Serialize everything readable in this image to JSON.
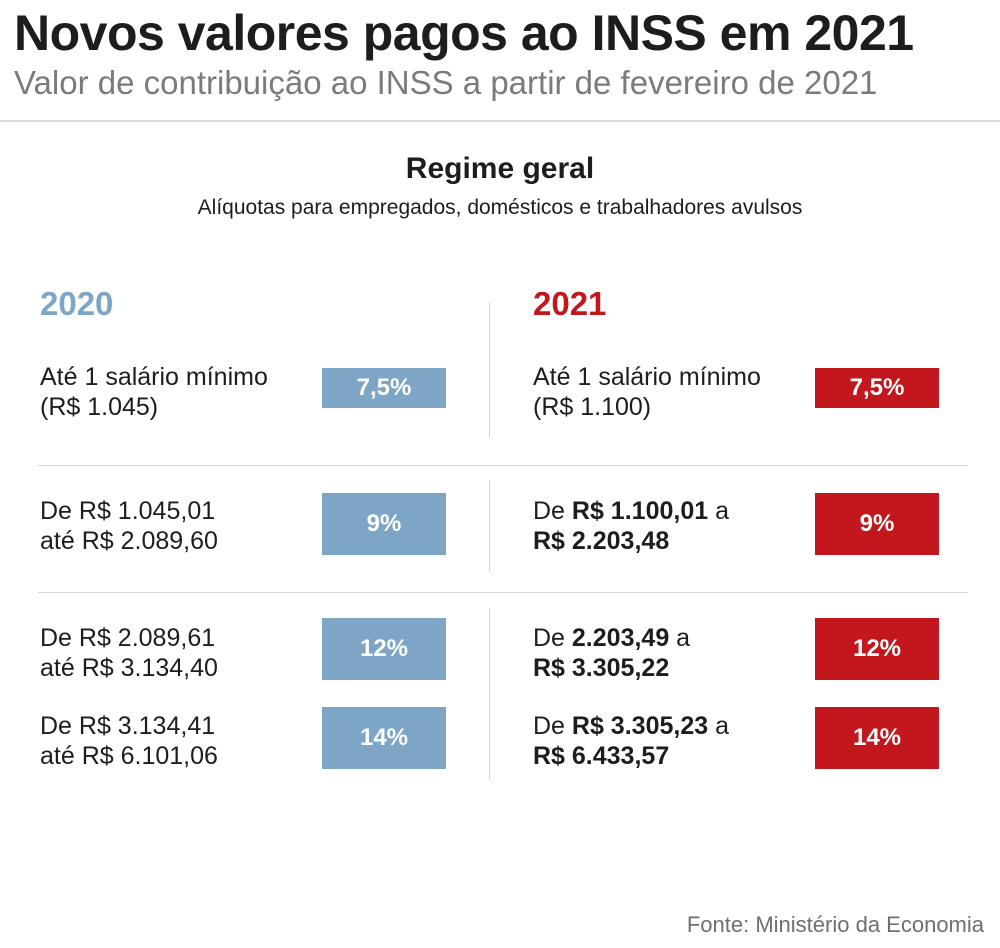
{
  "header": {
    "title": "Novos valores pagos ao INSS em 2021",
    "subtitle": "Valor de contribuição ao INSS a partir de fevereiro de 2021"
  },
  "section": {
    "title": "Regime geral",
    "subtitle": "Alíquotas para empregados, domésticos e trabalhadores avulsos"
  },
  "columns": {
    "left_year": "2020",
    "right_year": "2021"
  },
  "rows": [
    {
      "left": {
        "line1": "Até 1 salário mínimo",
        "line2": "(R$ 1.045)",
        "rate": "7,5%"
      },
      "right": {
        "line1": "Até 1 salário mínimo",
        "line2": "(R$ 1.100)",
        "rate": "7,5%"
      }
    },
    {
      "left": {
        "line1": "De R$ 1.045,01",
        "line2": "até R$ 2.089,60",
        "rate": "9%"
      },
      "right": {
        "l1a": "De ",
        "l1b": "R$ 1.100,01",
        "l1c": " a",
        "line2": "R$ 2.203,48",
        "rate": "9%"
      }
    },
    {
      "left": {
        "line1": "De R$ 2.089,61",
        "line2": "até R$ 3.134,40",
        "rate": "12%"
      },
      "right": {
        "l1a": "De ",
        "l1b": "2.203,49",
        "l1c": " a",
        "line2": "R$ 3.305,22",
        "rate": "12%"
      }
    },
    {
      "left": {
        "line1": "De R$ 3.134,41",
        "line2": "até R$ 6.101,06",
        "rate": "14%"
      },
      "right": {
        "l1a": "De ",
        "l1b": "R$ 3.305,23",
        "l1c": " a",
        "line2": "R$ 6.433,57",
        "rate": "14%"
      }
    }
  ],
  "source": "Fonte: Ministério da Economia",
  "colors": {
    "col_2020": "#7da6c6",
    "col_2021": "#c2171d",
    "subtitle_gray": "#7b7b7b"
  }
}
